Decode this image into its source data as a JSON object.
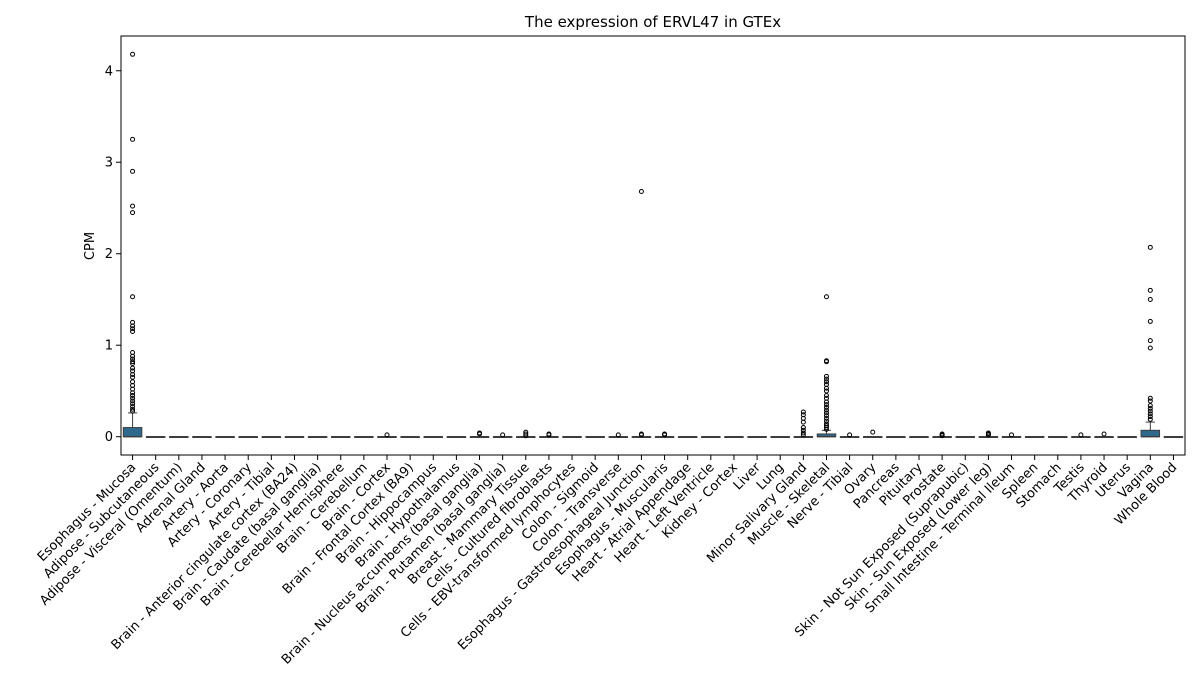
{
  "chart_data": {
    "type": "box",
    "title": "The expression of ERVL47 in GTEx",
    "xlabel": "",
    "ylabel": "CPM",
    "ylim": [
      -0.2,
      4.38
    ],
    "yticks": [
      0,
      1,
      2,
      3,
      4
    ],
    "ytick_labels": [
      "0",
      "1",
      "2",
      "3",
      "4"
    ],
    "box_color": "#2f6a8e",
    "grid": false,
    "categories": [
      "Esophagus - Mucosa",
      "Adipose - Subcutaneous",
      "Adipose - Visceral (Omentum)",
      "Adrenal Gland",
      "Artery - Aorta",
      "Artery - Coronary",
      "Artery - Tibial",
      "Brain - Anterior cingulate cortex (BA24)",
      "Brain - Caudate (basal ganglia)",
      "Brain - Cerebellar Hemisphere",
      "Brain - Cerebellum",
      "Brain - Cortex",
      "Brain - Frontal Cortex (BA9)",
      "Brain - Hippocampus",
      "Brain - Hypothalamus",
      "Brain - Nucleus accumbens (basal ganglia)",
      "Brain - Putamen (basal ganglia)",
      "Breast - Mammary Tissue",
      "Cells - Cultured fibroblasts",
      "Cells - EBV-transformed lymphocytes",
      "Colon - Sigmoid",
      "Colon - Transverse",
      "Esophagus - Gastroesophageal Junction",
      "Esophagus - Muscularis",
      "Heart - Atrial Appendage",
      "Heart - Left Ventricle",
      "Kidney - Cortex",
      "Liver",
      "Lung",
      "Minor Salivary Gland",
      "Muscle - Skeletal",
      "Nerve - Tibial",
      "Ovary",
      "Pancreas",
      "Pituitary",
      "Prostate",
      "Skin - Not Sun Exposed (Suprapubic)",
      "Skin - Sun Exposed (Lower leg)",
      "Small Intestine - Terminal Ileum",
      "Spleen",
      "Stomach",
      "Testis",
      "Thyroid",
      "Uterus",
      "Vagina",
      "Whole Blood"
    ],
    "boxes": [
      {
        "q1": 0.0,
        "median": 0.0,
        "q3": 0.1,
        "whisker_low": 0.0,
        "whisker_high": 0.26,
        "outliers": [
          4.18,
          3.25,
          2.9,
          2.52,
          2.45,
          1.53,
          1.25,
          1.21,
          1.18,
          1.15,
          0.92,
          0.88,
          0.85,
          0.82,
          0.8,
          0.75,
          0.72,
          0.68,
          0.65,
          0.6,
          0.56,
          0.52,
          0.48,
          0.45,
          0.42,
          0.39,
          0.36,
          0.33,
          0.3,
          0.28
        ]
      },
      {
        "q1": 0,
        "median": 0,
        "q3": 0,
        "whisker_low": 0,
        "whisker_high": 0,
        "outliers": []
      },
      {
        "q1": 0,
        "median": 0,
        "q3": 0,
        "whisker_low": 0,
        "whisker_high": 0,
        "outliers": []
      },
      {
        "q1": 0,
        "median": 0,
        "q3": 0,
        "whisker_low": 0,
        "whisker_high": 0,
        "outliers": []
      },
      {
        "q1": 0,
        "median": 0,
        "q3": 0,
        "whisker_low": 0,
        "whisker_high": 0,
        "outliers": []
      },
      {
        "q1": 0,
        "median": 0,
        "q3": 0,
        "whisker_low": 0,
        "whisker_high": 0,
        "outliers": []
      },
      {
        "q1": 0,
        "median": 0,
        "q3": 0,
        "whisker_low": 0,
        "whisker_high": 0,
        "outliers": []
      },
      {
        "q1": 0,
        "median": 0,
        "q3": 0,
        "whisker_low": 0,
        "whisker_high": 0,
        "outliers": []
      },
      {
        "q1": 0,
        "median": 0,
        "q3": 0,
        "whisker_low": 0,
        "whisker_high": 0,
        "outliers": []
      },
      {
        "q1": 0,
        "median": 0,
        "q3": 0,
        "whisker_low": 0,
        "whisker_high": 0,
        "outliers": []
      },
      {
        "q1": 0,
        "median": 0,
        "q3": 0,
        "whisker_low": 0,
        "whisker_high": 0,
        "outliers": []
      },
      {
        "q1": 0,
        "median": 0,
        "q3": 0,
        "whisker_low": 0,
        "whisker_high": 0,
        "outliers": [
          0.02
        ]
      },
      {
        "q1": 0,
        "median": 0,
        "q3": 0,
        "whisker_low": 0,
        "whisker_high": 0,
        "outliers": []
      },
      {
        "q1": 0,
        "median": 0,
        "q3": 0,
        "whisker_low": 0,
        "whisker_high": 0,
        "outliers": []
      },
      {
        "q1": 0,
        "median": 0,
        "q3": 0,
        "whisker_low": 0,
        "whisker_high": 0,
        "outliers": []
      },
      {
        "q1": 0,
        "median": 0,
        "q3": 0,
        "whisker_low": 0,
        "whisker_high": 0,
        "outliers": [
          0.04,
          0.03
        ]
      },
      {
        "q1": 0,
        "median": 0,
        "q3": 0,
        "whisker_low": 0,
        "whisker_high": 0,
        "outliers": [
          0.02
        ]
      },
      {
        "q1": 0,
        "median": 0,
        "q3": 0,
        "whisker_low": 0,
        "whisker_high": 0,
        "outliers": [
          0.05,
          0.03,
          0.01
        ]
      },
      {
        "q1": 0,
        "median": 0,
        "q3": 0,
        "whisker_low": 0,
        "whisker_high": 0,
        "outliers": [
          0.03,
          0.02
        ]
      },
      {
        "q1": 0,
        "median": 0,
        "q3": 0,
        "whisker_low": 0,
        "whisker_high": 0,
        "outliers": []
      },
      {
        "q1": 0,
        "median": 0,
        "q3": 0,
        "whisker_low": 0,
        "whisker_high": 0,
        "outliers": []
      },
      {
        "q1": 0,
        "median": 0,
        "q3": 0,
        "whisker_low": 0,
        "whisker_high": 0,
        "outliers": [
          0.02
        ]
      },
      {
        "q1": 0,
        "median": 0,
        "q3": 0,
        "whisker_low": 0,
        "whisker_high": 0,
        "outliers": [
          2.68,
          0.03,
          0.02
        ]
      },
      {
        "q1": 0,
        "median": 0,
        "q3": 0,
        "whisker_low": 0,
        "whisker_high": 0,
        "outliers": [
          0.03,
          0.02
        ]
      },
      {
        "q1": 0,
        "median": 0,
        "q3": 0,
        "whisker_low": 0,
        "whisker_high": 0,
        "outliers": []
      },
      {
        "q1": 0,
        "median": 0,
        "q3": 0,
        "whisker_low": 0,
        "whisker_high": 0,
        "outliers": []
      },
      {
        "q1": 0,
        "median": 0,
        "q3": 0,
        "whisker_low": 0,
        "whisker_high": 0,
        "outliers": []
      },
      {
        "q1": 0,
        "median": 0,
        "q3": 0,
        "whisker_low": 0,
        "whisker_high": 0,
        "outliers": []
      },
      {
        "q1": 0,
        "median": 0,
        "q3": 0,
        "whisker_low": 0,
        "whisker_high": 0,
        "outliers": []
      },
      {
        "q1": 0,
        "median": 0,
        "q3": 0,
        "whisker_low": 0,
        "whisker_high": 0,
        "outliers": [
          0.27,
          0.24,
          0.2,
          0.16,
          0.1,
          0.07,
          0.04,
          0.02
        ]
      },
      {
        "q1": 0,
        "median": 0,
        "q3": 0.03,
        "whisker_low": 0,
        "whisker_high": 0.07,
        "outliers": [
          1.53,
          0.83,
          0.82,
          0.66,
          0.63,
          0.6,
          0.57,
          0.53,
          0.5,
          0.45,
          0.42,
          0.38,
          0.35,
          0.32,
          0.29,
          0.26,
          0.23,
          0.2,
          0.17,
          0.14,
          0.12,
          0.1,
          0.08
        ]
      },
      {
        "q1": 0,
        "median": 0,
        "q3": 0,
        "whisker_low": 0,
        "whisker_high": 0,
        "outliers": [
          0.02
        ]
      },
      {
        "q1": 0,
        "median": 0,
        "q3": 0,
        "whisker_low": 0,
        "whisker_high": 0,
        "outliers": [
          0.05
        ]
      },
      {
        "q1": 0,
        "median": 0,
        "q3": 0,
        "whisker_low": 0,
        "whisker_high": 0,
        "outliers": []
      },
      {
        "q1": 0,
        "median": 0,
        "q3": 0,
        "whisker_low": 0,
        "whisker_high": 0,
        "outliers": []
      },
      {
        "q1": 0,
        "median": 0,
        "q3": 0,
        "whisker_low": 0,
        "whisker_high": 0,
        "outliers": [
          0.03,
          0.02,
          0.01
        ]
      },
      {
        "q1": 0,
        "median": 0,
        "q3": 0,
        "whisker_low": 0,
        "whisker_high": 0,
        "outliers": []
      },
      {
        "q1": 0,
        "median": 0,
        "q3": 0,
        "whisker_low": 0,
        "whisker_high": 0,
        "outliers": [
          0.04,
          0.03,
          0.02
        ]
      },
      {
        "q1": 0,
        "median": 0,
        "q3": 0,
        "whisker_low": 0,
        "whisker_high": 0,
        "outliers": [
          0.02
        ]
      },
      {
        "q1": 0,
        "median": 0,
        "q3": 0,
        "whisker_low": 0,
        "whisker_high": 0,
        "outliers": []
      },
      {
        "q1": 0,
        "median": 0,
        "q3": 0,
        "whisker_low": 0,
        "whisker_high": 0,
        "outliers": []
      },
      {
        "q1": 0,
        "median": 0,
        "q3": 0,
        "whisker_low": 0,
        "whisker_high": 0,
        "outliers": [
          0.02
        ]
      },
      {
        "q1": 0,
        "median": 0,
        "q3": 0,
        "whisker_low": 0,
        "whisker_high": 0,
        "outliers": [
          0.03
        ]
      },
      {
        "q1": 0,
        "median": 0,
        "q3": 0,
        "whisker_low": 0,
        "whisker_high": 0,
        "outliers": []
      },
      {
        "q1": 0,
        "median": 0.0,
        "q3": 0.07,
        "whisker_low": 0,
        "whisker_high": 0.16,
        "outliers": [
          2.07,
          1.6,
          1.5,
          1.26,
          1.05,
          0.97,
          0.42,
          0.39,
          0.34,
          0.31,
          0.28,
          0.25,
          0.22,
          0.19
        ]
      },
      {
        "q1": 0,
        "median": 0,
        "q3": 0,
        "whisker_low": 0,
        "whisker_high": 0,
        "outliers": []
      }
    ]
  }
}
